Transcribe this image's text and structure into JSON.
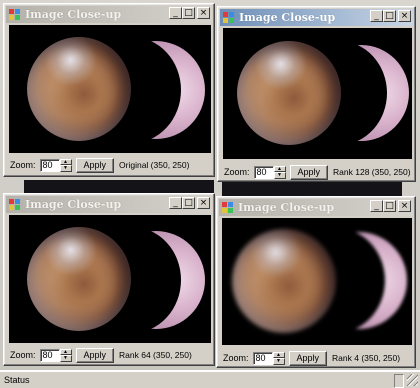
{
  "windows": [
    {
      "title": "Image Close-up",
      "zoom": "80",
      "apply_label": "Apply",
      "info": "Original (350, 250)",
      "active": false,
      "blurry": false
    },
    {
      "title": "Image Close-up",
      "zoom": "80",
      "apply_label": "Apply",
      "info": "Rank 128 (350, 250)",
      "active": true,
      "blurry": false
    },
    {
      "title": "Image Close-up",
      "zoom": "80",
      "apply_label": "Apply",
      "info": "Rank 64 (350, 250)",
      "active": false,
      "blurry": false
    },
    {
      "title": "Image Close-up",
      "zoom": "80",
      "apply_label": "Apply",
      "info": "Rank 4 (350, 250)",
      "active": false,
      "blurry": true
    }
  ],
  "labels": {
    "zoom": "Zoom:",
    "minimize": "_",
    "maximize": "□",
    "close": "×"
  },
  "statusbar": {
    "text": "Status"
  },
  "colors": {
    "active_title": "#6d8fb8",
    "inactive_title": "#b4b2aa",
    "window_face": "#d4d0c8",
    "view_bg": "#000000"
  },
  "icons": [
    "app-icon",
    "minimize-icon",
    "maximize-icon",
    "close-icon",
    "spin-up-icon",
    "spin-down-icon",
    "size-grip-icon"
  ]
}
